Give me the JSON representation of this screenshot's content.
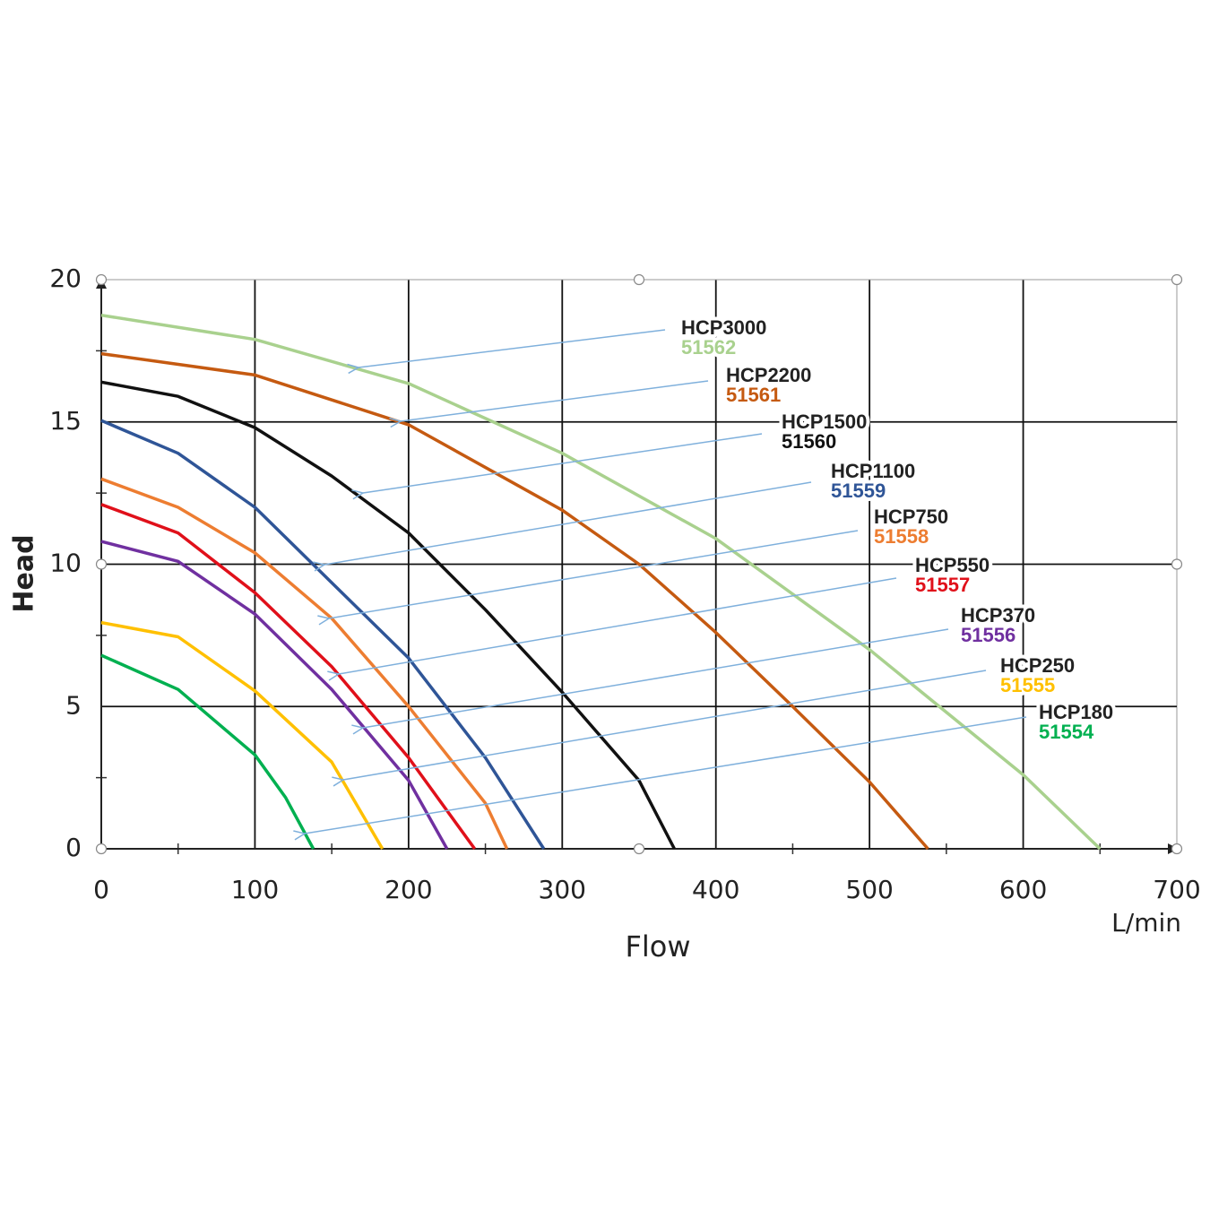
{
  "chart_data": {
    "type": "line",
    "y_label": "Head",
    "x_label": "Flow",
    "x_unit": "L/min",
    "xlim": [
      0,
      700
    ],
    "xticks": [
      0,
      100,
      200,
      300,
      400,
      500,
      600,
      700
    ],
    "ylim": [
      0,
      20
    ],
    "yticks": [
      0,
      5,
      10,
      15,
      20
    ],
    "grid": true,
    "series": [
      {
        "name": "HCP3000",
        "code": "51562",
        "color": "#a9d18e",
        "x": [
          0,
          100,
          200,
          300,
          400,
          500,
          600,
          650
        ],
        "values": [
          18.75,
          17.9,
          16.35,
          13.9,
          10.9,
          7.0,
          2.6,
          0
        ]
      },
      {
        "name": "HCP2200",
        "code": "51561",
        "color": "#c55a11",
        "x": [
          0,
          100,
          200,
          300,
          350,
          400,
          450,
          500,
          538
        ],
        "values": [
          17.4,
          16.65,
          14.9,
          11.9,
          10.0,
          7.6,
          5.0,
          2.35,
          0
        ]
      },
      {
        "name": "HCP1500",
        "code": "51560",
        "color": "#111111",
        "x": [
          0,
          50,
          100,
          150,
          200,
          250,
          300,
          350,
          373
        ],
        "values": [
          16.4,
          15.9,
          14.8,
          13.1,
          11.1,
          8.4,
          5.5,
          2.4,
          0
        ]
      },
      {
        "name": "HCP1100",
        "code": "51559",
        "color": "#2f5597",
        "x": [
          0,
          50,
          100,
          150,
          200,
          250,
          288
        ],
        "values": [
          15.05,
          13.9,
          12.0,
          9.35,
          6.7,
          3.2,
          0
        ]
      },
      {
        "name": "HCP750",
        "code": "51558",
        "color": "#ed7d31",
        "x": [
          0,
          50,
          100,
          150,
          200,
          250,
          264
        ],
        "values": [
          13.0,
          12.0,
          10.4,
          8.1,
          5.0,
          1.6,
          0
        ]
      },
      {
        "name": "HCP550",
        "code": "51557",
        "color": "#e0101a",
        "x": [
          0,
          50,
          100,
          150,
          200,
          243
        ],
        "values": [
          12.1,
          11.1,
          9.0,
          6.4,
          3.2,
          0
        ]
      },
      {
        "name": "HCP370",
        "code": "51556",
        "color": "#7030a0",
        "x": [
          0,
          50,
          100,
          150,
          200,
          225
        ],
        "values": [
          10.8,
          10.1,
          8.25,
          5.6,
          2.4,
          0
        ]
      },
      {
        "name": "HCP250",
        "code": "51555",
        "color": "#ffc000",
        "x": [
          0,
          50,
          100,
          150,
          183
        ],
        "values": [
          7.95,
          7.45,
          5.55,
          3.05,
          0
        ]
      },
      {
        "name": "HCP180",
        "code": "51554",
        "color": "#00b050",
        "x": [
          0,
          50,
          100,
          120,
          138
        ],
        "values": [
          6.8,
          5.6,
          3.3,
          1.8,
          0
        ]
      }
    ]
  }
}
